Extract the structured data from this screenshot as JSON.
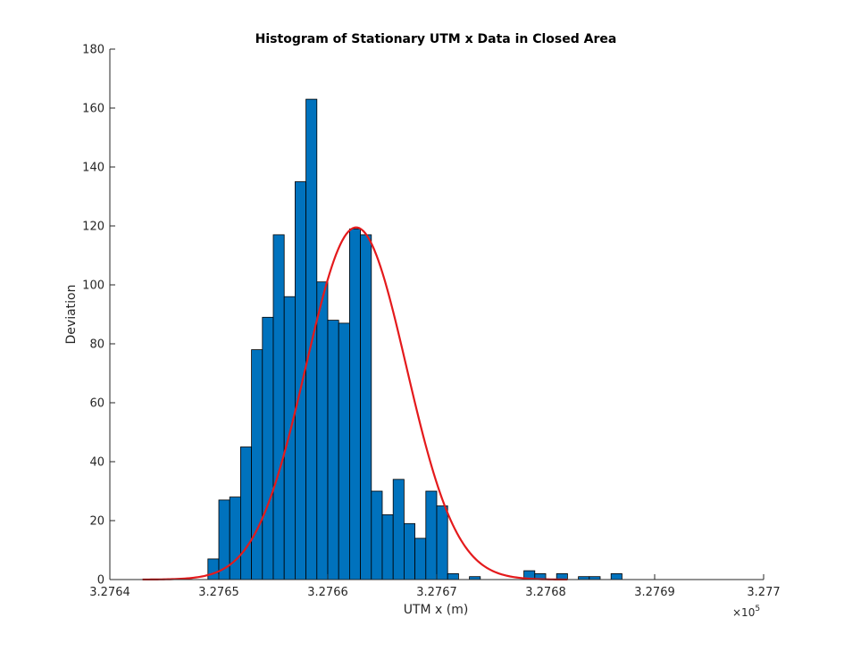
{
  "chart_data": {
    "type": "bar",
    "title": "Histogram of Stationary UTM x Data in Closed Area",
    "xlabel": "UTM x (m)",
    "ylabel": "Deviation",
    "xlim": [
      327640,
      327700
    ],
    "ylim": [
      0,
      180
    ],
    "x_tick_labels": [
      "3.2764",
      "3.2765",
      "3.2766",
      "3.2767",
      "3.2768",
      "3.2769",
      "3.277"
    ],
    "x_ticks": [
      327640,
      327650,
      327660,
      327670,
      327680,
      327690,
      327700
    ],
    "x_exponent_label": "×10",
    "x_exponent_power": "5",
    "y_ticks": [
      0,
      20,
      40,
      60,
      80,
      100,
      120,
      140,
      160,
      180
    ],
    "bin_edges_start": 327649,
    "bin_width": 1,
    "counts": [
      7,
      27,
      28,
      45,
      78,
      89,
      117,
      96,
      135,
      163,
      101,
      88,
      87,
      119,
      117,
      30,
      22,
      34,
      19,
      14,
      30,
      25,
      2,
      0,
      1,
      0,
      0,
      0,
      0,
      3,
      2,
      0,
      2,
      0,
      1,
      1,
      0,
      2
    ],
    "bar_color": "#0072BD",
    "bar_edge_color": "#000000",
    "fit_curve": {
      "type": "normal",
      "color": "#e41a1c",
      "mean": 327662.6,
      "peak": 119.5,
      "sigma": 4.6,
      "x_range": [
        327643,
        327682
      ]
    },
    "grid": false,
    "legend": "none"
  }
}
